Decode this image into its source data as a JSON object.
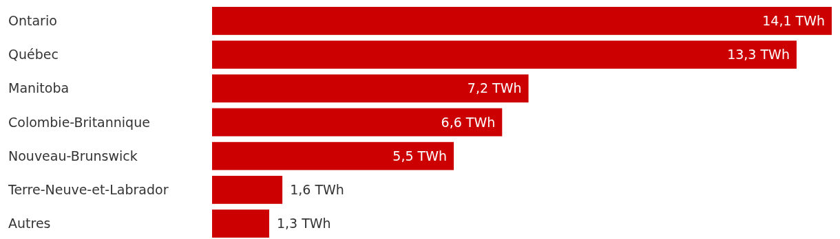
{
  "chart_data": {
    "type": "bar",
    "orientation": "horizontal",
    "categories": [
      "Ontario",
      "Québec",
      "Manitoba",
      "Colombie-Britannique",
      "Nouveau-Brunswick",
      "Terre-Neuve-et-Labrador",
      "Autres"
    ],
    "values": [
      14.1,
      13.3,
      7.2,
      6.6,
      5.5,
      1.6,
      1.3
    ],
    "value_labels": [
      "14,1 TWh",
      "13,3 TWh",
      "7,2 TWh",
      "6,6 TWh",
      "5,5 TWh",
      "1,6 TWh",
      "1,3 TWh"
    ],
    "color": "#cc0000"
  }
}
